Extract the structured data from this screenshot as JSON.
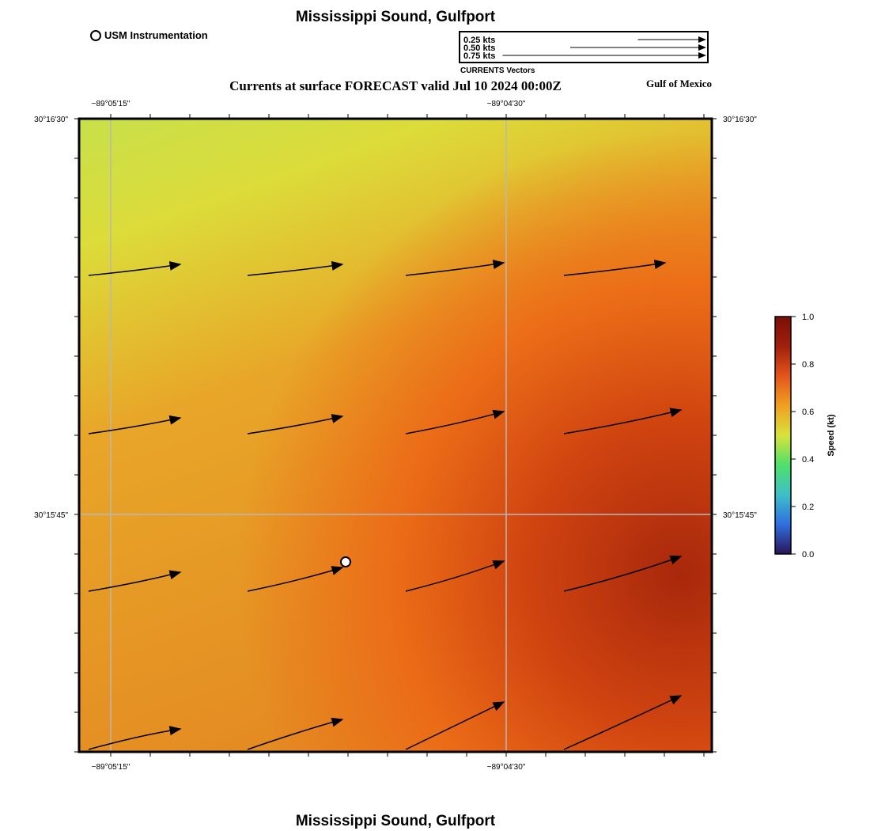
{
  "title": "Mississippi Sound, Gulfport",
  "subtitle": "Currents at surface FORECAST valid Jul 10 2024 00:00Z",
  "region_label": "Gulf of Mexico",
  "legend": {
    "station_label": "USM Instrumentation",
    "vector_caption": "CURRENTS Vectors",
    "vector_scale": [
      {
        "label": "0.25 kts",
        "speed": 0.25
      },
      {
        "label": "0.50 kts",
        "speed": 0.5
      },
      {
        "label": "0.75 kts",
        "speed": 0.75
      }
    ]
  },
  "axes": {
    "lon_ticks": [
      "−89°05'15\"",
      "−89°04'30\""
    ],
    "lat_ticks": [
      "30°16'30\"",
      "30°15'45\""
    ]
  },
  "colorbar": {
    "label": "Speed (kt)",
    "min": 0.0,
    "max": 1.0,
    "ticks": [
      "0.0",
      "0.2",
      "0.4",
      "0.6",
      "0.8",
      "1.0"
    ],
    "colors": [
      "#2a1458",
      "#2f6fe0",
      "#3ec0c8",
      "#4fe06a",
      "#d8e23a",
      "#f0a020",
      "#e4541a",
      "#a0200c",
      "#7a0e06"
    ]
  },
  "station": {
    "name": "USM Instrumentation",
    "col": 1.6,
    "row": 2.8
  }
}
